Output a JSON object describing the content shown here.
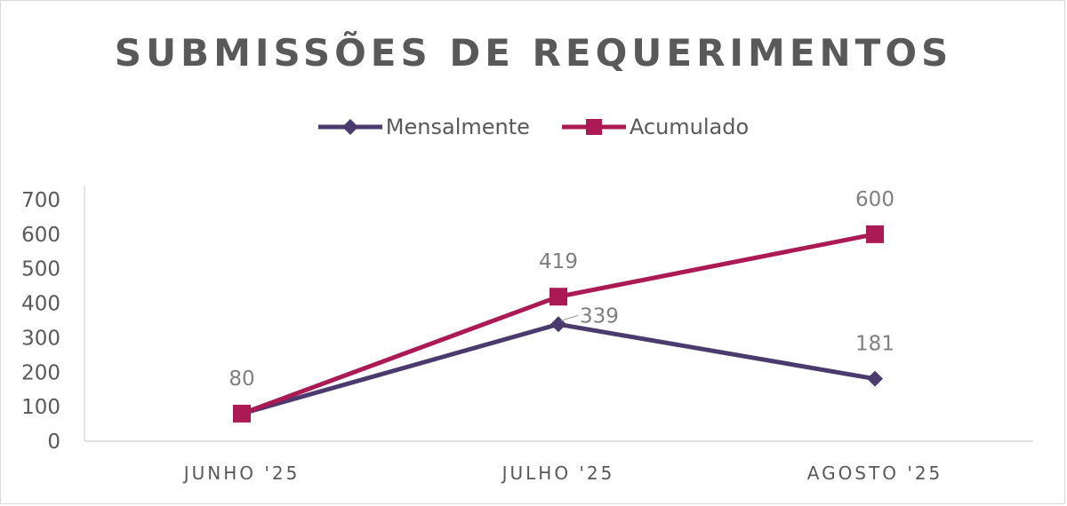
{
  "chart_data": {
    "type": "line",
    "title": "SUBMISSÕES DE REQUERIMENTOS",
    "categories": [
      "JUNHO '25",
      "JULHO '25",
      "AGOSTO '25"
    ],
    "series": [
      {
        "name": "Mensalmente",
        "values": [
          80,
          339,
          181
        ],
        "color": "#4a3a6e",
        "marker": "diamond"
      },
      {
        "name": "Acumulado",
        "values": [
          80,
          419,
          600
        ],
        "color": "#ab1a55",
        "marker": "square"
      }
    ],
    "ylim": [
      0,
      700
    ],
    "yticks": [
      "0",
      "100",
      "200",
      "300",
      "400",
      "500",
      "600",
      "700"
    ],
    "grid": false,
    "legend_position": "top",
    "data_labels": [
      {
        "text": "80"
      },
      {
        "text": "339"
      },
      {
        "text": "181"
      },
      {
        "text": "419"
      },
      {
        "text": "600"
      }
    ]
  }
}
